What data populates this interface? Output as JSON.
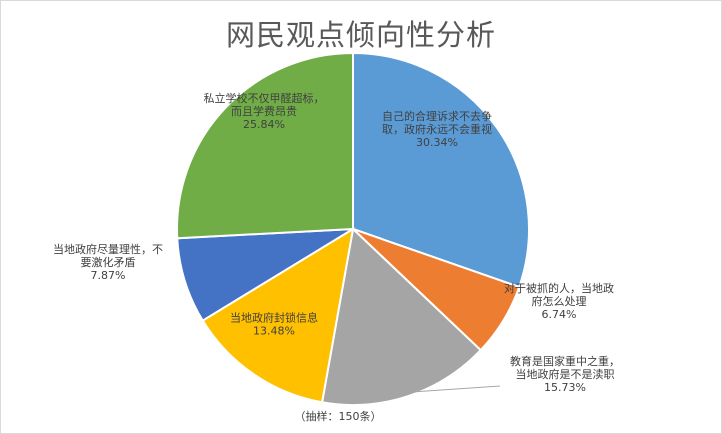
{
  "chart_data": {
    "type": "pie",
    "title": "网民观点倾向性分析",
    "note": "（抽样：150条）",
    "slices": [
      {
        "label": [
          "自己的合理诉求不去争",
          "取，政府永远不会重视"
        ],
        "value": 30.34,
        "value_label": "30.34%",
        "color": "#5b9bd5"
      },
      {
        "label": [
          "对于被抓的人，当地政",
          "府怎么处理"
        ],
        "value": 6.74,
        "value_label": "6.74%",
        "color": "#ed7d31"
      },
      {
        "label": [
          "教育是国家重中之重，",
          "当地政府是不是渎职"
        ],
        "value": 15.73,
        "value_label": "15.73%",
        "color": "#a5a5a5"
      },
      {
        "label": [
          "当地政府封锁信息"
        ],
        "value": 13.48,
        "value_label": "13.48%",
        "color": "#ffc000"
      },
      {
        "label": [
          "当地政府尽量理性，不",
          "要激化矛盾"
        ],
        "value": 7.87,
        "value_label": "7.87%",
        "color": "#4472c4"
      },
      {
        "label": [
          "私立学校不仅甲醛超标，",
          "而且学费昂贵"
        ],
        "value": 25.84,
        "value_label": "25.84%",
        "color": "#70ad47"
      }
    ]
  }
}
